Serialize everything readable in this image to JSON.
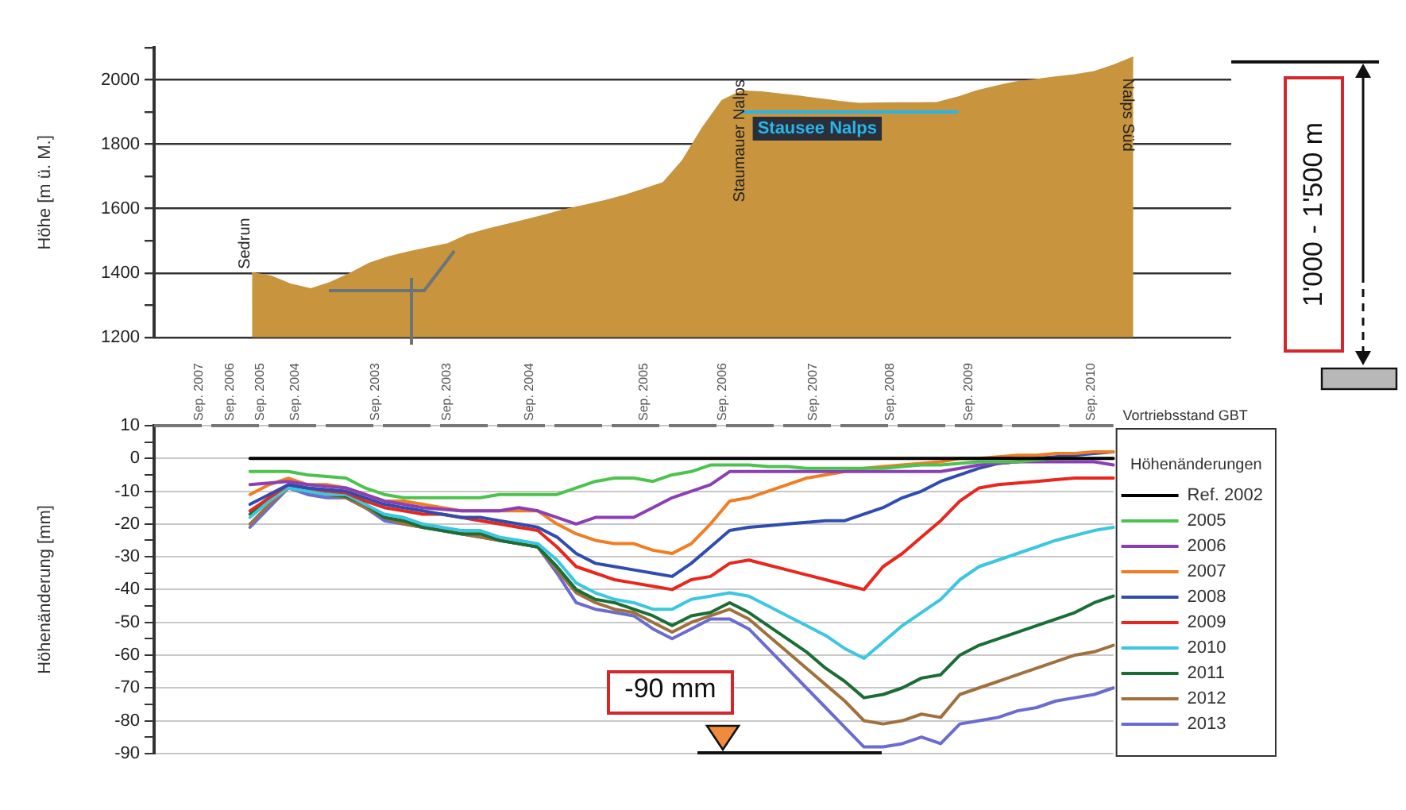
{
  "chart_data": [
    {
      "type": "area",
      "ylabel": "Höhe [m ü. M.]",
      "categories": [
        null,
        null,
        null,
        null,
        null,
        null,
        null,
        null,
        null,
        null,
        null,
        null,
        null,
        null,
        null,
        null,
        null,
        null,
        null,
        null,
        null,
        null,
        null,
        null,
        null,
        null,
        null,
        null,
        null,
        null,
        null,
        null,
        null,
        null,
        null,
        null,
        null,
        null,
        null,
        null,
        null,
        null,
        null,
        null,
        null,
        null,
        null,
        null,
        null,
        null,
        null,
        null,
        null,
        null,
        null,
        null
      ],
      "ylim": [
        1200,
        2100
      ],
      "yticks": [
        1200,
        {
          "value": 1300,
          "label": null
        },
        1400,
        {
          "value": 1500,
          "label": null
        },
        1600,
        {
          "value": 1700,
          "label": null
        },
        1800,
        {
          "value": 1900,
          "label": null
        },
        2000,
        {
          "value": 2100,
          "label": null
        }
      ],
      "grid": "y",
      "series": [
        {
          "color": "#c8943e",
          "values": [
            null,
            null,
            null,
            null,
            null,
            1400,
            1389,
            1364,
            1350,
            1370,
            1398,
            1430,
            1450,
            1465,
            1478,
            1490,
            1518,
            1535,
            1550,
            1565,
            1580,
            1597,
            1610,
            1624,
            1640,
            1660,
            1680,
            1750,
            1850,
            1935,
            1965,
            1962,
            1955,
            1948,
            1940,
            1932,
            1926,
            1927,
            1928,
            1928,
            1929,
            1945,
            1965,
            1980,
            1993,
            2000,
            2008,
            2015,
            2025,
            2045,
            2070,
            null,
            null,
            null,
            null,
            null
          ]
        },
        {
          "type": "line",
          "name": "Stausee Nalps",
          "color": "#29b5e8",
          "values": [
            null,
            null,
            null,
            null,
            null,
            null,
            null,
            null,
            null,
            null,
            null,
            null,
            null,
            null,
            null,
            null,
            null,
            null,
            null,
            null,
            null,
            null,
            null,
            null,
            null,
            null,
            null,
            null,
            null,
            null,
            1900,
            1900,
            1900,
            1900,
            1900,
            1900,
            1900,
            1900,
            1900,
            1900,
            1900,
            1900,
            null,
            null,
            null,
            null,
            null,
            null,
            null,
            null,
            null,
            null,
            null,
            null,
            null,
            null
          ]
        }
      ],
      "annotations": [
        "Sedrun",
        "Staumauer Nalps",
        "Nalps Süd",
        "1'000 - 1'500 m"
      ]
    },
    {
      "type": "line",
      "ylabel": "Höhenänderung [mm]",
      "legend_title": "Höhenänderungen",
      "legend": "right",
      "marker": "none",
      "grid": "y",
      "categories": [
        null,
        null,
        null,
        null,
        null,
        null,
        null,
        null,
        null,
        null,
        null,
        null,
        null,
        null,
        null,
        null,
        null,
        null,
        null,
        null,
        null,
        null,
        null,
        null,
        null,
        null,
        null,
        null,
        null,
        null,
        null,
        null,
        null,
        null,
        null,
        null,
        null,
        null,
        null,
        null,
        null,
        null,
        null,
        null,
        null,
        null,
        null,
        null,
        null,
        null,
        null
      ],
      "ylim": [
        -90,
        10
      ],
      "yticks": [
        -90,
        {
          "value": -85,
          "label": null
        },
        -80,
        {
          "value": -75,
          "label": null
        },
        -70,
        {
          "value": -65,
          "label": null
        },
        -60,
        {
          "value": -55,
          "label": null
        },
        -50,
        {
          "value": -45,
          "label": null
        },
        -40,
        {
          "value": -35,
          "label": null
        },
        -30,
        {
          "value": -25,
          "label": null
        },
        -20,
        {
          "value": -15,
          "label": null
        },
        -10,
        {
          "value": -5,
          "label": null
        },
        0,
        {
          "value": 5,
          "label": null
        },
        10
      ],
      "series": [
        {
          "name": "Ref. 2002",
          "color": "#000000",
          "values": [
            null,
            null,
            null,
            null,
            null,
            0,
            0,
            0,
            0,
            0,
            0,
            0,
            0,
            0,
            0,
            0,
            0,
            0,
            0,
            0,
            0,
            0,
            0,
            0,
            0,
            0,
            0,
            0,
            0,
            0,
            0,
            0,
            0,
            0,
            0,
            0,
            0,
            0,
            0,
            0,
            0,
            0,
            0,
            0,
            0,
            0,
            0,
            0,
            0,
            0,
            0
          ]
        },
        {
          "name": "2005",
          "color": "#4cc34c",
          "values": [
            null,
            null,
            null,
            null,
            null,
            -4,
            -4,
            -4,
            -5,
            -5.5,
            -6,
            -9,
            -11,
            -12,
            -12,
            -12,
            -12,
            -12,
            -11,
            -11,
            -11,
            -11,
            -9,
            -7,
            -6,
            -6,
            -7,
            -5,
            -4,
            -2,
            -2,
            -2,
            -2.5,
            -2.5,
            -3,
            -3,
            -3,
            -3,
            -3,
            -2.5,
            -2,
            -2,
            -1.5,
            -1,
            -1,
            -1,
            -0.5,
            0,
            0,
            null,
            null
          ]
        },
        {
          "name": "2006",
          "color": "#8b3fb5",
          "values": [
            null,
            null,
            null,
            null,
            null,
            -8,
            -7.5,
            -7,
            -8,
            -8.5,
            -9,
            -11,
            -13,
            -14,
            -15,
            -15.5,
            -16,
            -16,
            -16,
            -15,
            -16,
            -18,
            -20,
            -18,
            -18,
            -18,
            -15,
            -12,
            -10,
            -8,
            -4,
            -4,
            -4,
            -4,
            -4,
            -4,
            -4,
            -4,
            -4,
            -4,
            -4,
            -4,
            -3,
            -2,
            -1.5,
            -1,
            -1,
            -1,
            -1,
            -1,
            -2
          ]
        },
        {
          "name": "2007",
          "color": "#f07d22",
          "values": [
            null,
            null,
            null,
            null,
            null,
            -11,
            -8,
            -6,
            -8,
            -8,
            -9,
            -11,
            -13,
            -13,
            -14,
            -15,
            -16,
            -16,
            -16,
            -16,
            -16,
            -20,
            -23,
            -25,
            -26,
            -26,
            -28,
            -29,
            -26,
            -20,
            -13,
            -12,
            -10,
            -8,
            -6,
            -5,
            -4,
            -3,
            -2.5,
            -2,
            -1.5,
            -1,
            0,
            0,
            0.5,
            1,
            1,
            1.5,
            1.5,
            2,
            2
          ]
        },
        {
          "name": "2008",
          "color": "#2f4db0",
          "values": [
            null,
            null,
            null,
            null,
            null,
            -14,
            -11,
            -8,
            -9,
            -9.5,
            -10,
            -12,
            -14,
            -15,
            -16,
            -17,
            -18,
            -18,
            -19,
            -20,
            -21,
            -24,
            -29,
            -32,
            -33,
            -34,
            -35,
            -36,
            -32,
            -27,
            -22,
            -21,
            -20.5,
            -20,
            -19.5,
            -19,
            -19,
            -17,
            -15,
            -12,
            -10,
            -7,
            -5,
            -3,
            -1.5,
            -1,
            0,
            0.5,
            1,
            1.5,
            2
          ]
        },
        {
          "name": "2009",
          "color": "#e8261c",
          "values": [
            null,
            null,
            null,
            null,
            null,
            -16,
            -12,
            -8,
            -9,
            -10,
            -10.5,
            -13,
            -15,
            -16,
            -17,
            -17,
            -18,
            -19,
            -20,
            -21,
            -22,
            -27,
            -33,
            -35,
            -37,
            -38,
            -39,
            -40,
            -37,
            -36,
            -32,
            -31,
            -32.5,
            -34,
            -35.5,
            -37,
            -38.5,
            -40,
            -33,
            -29,
            -24,
            -19,
            -13,
            -9,
            -8,
            -7.5,
            -7,
            -6.5,
            -6,
            -6,
            -6
          ]
        },
        {
          "name": "2010",
          "color": "#3cc6e0",
          "values": [
            null,
            null,
            null,
            null,
            null,
            -18,
            -13,
            -9,
            -10,
            -11,
            -11,
            -14,
            -17,
            -18,
            -20,
            -21,
            -22,
            -22,
            -24,
            -25,
            -26,
            -31,
            -38,
            -41,
            -43,
            -44,
            -46,
            -46,
            -43,
            -42,
            -41,
            -42,
            -45,
            -48,
            -51,
            -54,
            -58,
            -61,
            -56,
            -51,
            -47,
            -43,
            -37,
            -33,
            -31,
            -29,
            -27,
            -25,
            -23.5,
            -22,
            -21
          ]
        },
        {
          "name": "2011",
          "color": "#1a6e35",
          "values": [
            null,
            null,
            null,
            null,
            null,
            -17,
            -12,
            -8,
            -10,
            -11,
            -11.5,
            -14,
            -18,
            -19,
            -21,
            -22,
            -23,
            -23,
            -25,
            -26,
            -27,
            -33,
            -40,
            -43,
            -44,
            -46,
            -48,
            -51,
            -48,
            -47,
            -44,
            -47,
            -51,
            -55,
            -59,
            -64,
            -68,
            -73,
            -72,
            -70,
            -67,
            -66,
            -60,
            -57,
            -55,
            -53,
            -51,
            -49,
            -47,
            -44,
            -42
          ]
        },
        {
          "name": "2012",
          "color": "#a0703e",
          "values": [
            null,
            null,
            null,
            null,
            null,
            -20,
            -14,
            -9,
            -10,
            -11,
            -12,
            -15,
            -18,
            -20,
            -21,
            -22,
            -23,
            -24,
            -25,
            -26,
            -27,
            -34,
            -41,
            -44,
            -46,
            -47,
            -50,
            -53,
            -50,
            -48,
            -46,
            -49,
            -54,
            -59,
            -64,
            -69,
            -74,
            -80,
            -81,
            -80,
            -78,
            -79,
            -72,
            -70,
            -68,
            -66,
            -64,
            -62,
            -60,
            -59,
            -57
          ]
        },
        {
          "name": "2013",
          "color": "#6b6bd0",
          "values": [
            null,
            null,
            null,
            null,
            null,
            -21,
            -15,
            -9,
            -11,
            -12,
            -12,
            -15,
            -19,
            -20,
            -21,
            -22,
            -23,
            -24,
            -25,
            -26,
            -27,
            -35,
            -44,
            -46,
            -47,
            -48,
            -52,
            -55,
            -52,
            -49,
            -49,
            -52,
            -58,
            -64,
            -70,
            -76,
            -82,
            -88,
            -88,
            -87,
            -85,
            -87,
            -81,
            -80,
            -79,
            -77,
            -76,
            -74,
            -73,
            -72,
            -70
          ]
        }
      ],
      "annotations": [
        "Sep. 2007",
        "Sep. 2006",
        "Sep. 2005",
        "Sep. 2004",
        "Sep. 2003",
        "Sep. 2003",
        "Sep. 2004",
        "Sep. 2005",
        "Sep. 2006",
        "Sep. 2007",
        "Sep. 2008",
        "Sep. 2009",
        "Sep. 2010",
        "Vortriebsstand GBT",
        "-90 mm"
      ]
    }
  ]
}
